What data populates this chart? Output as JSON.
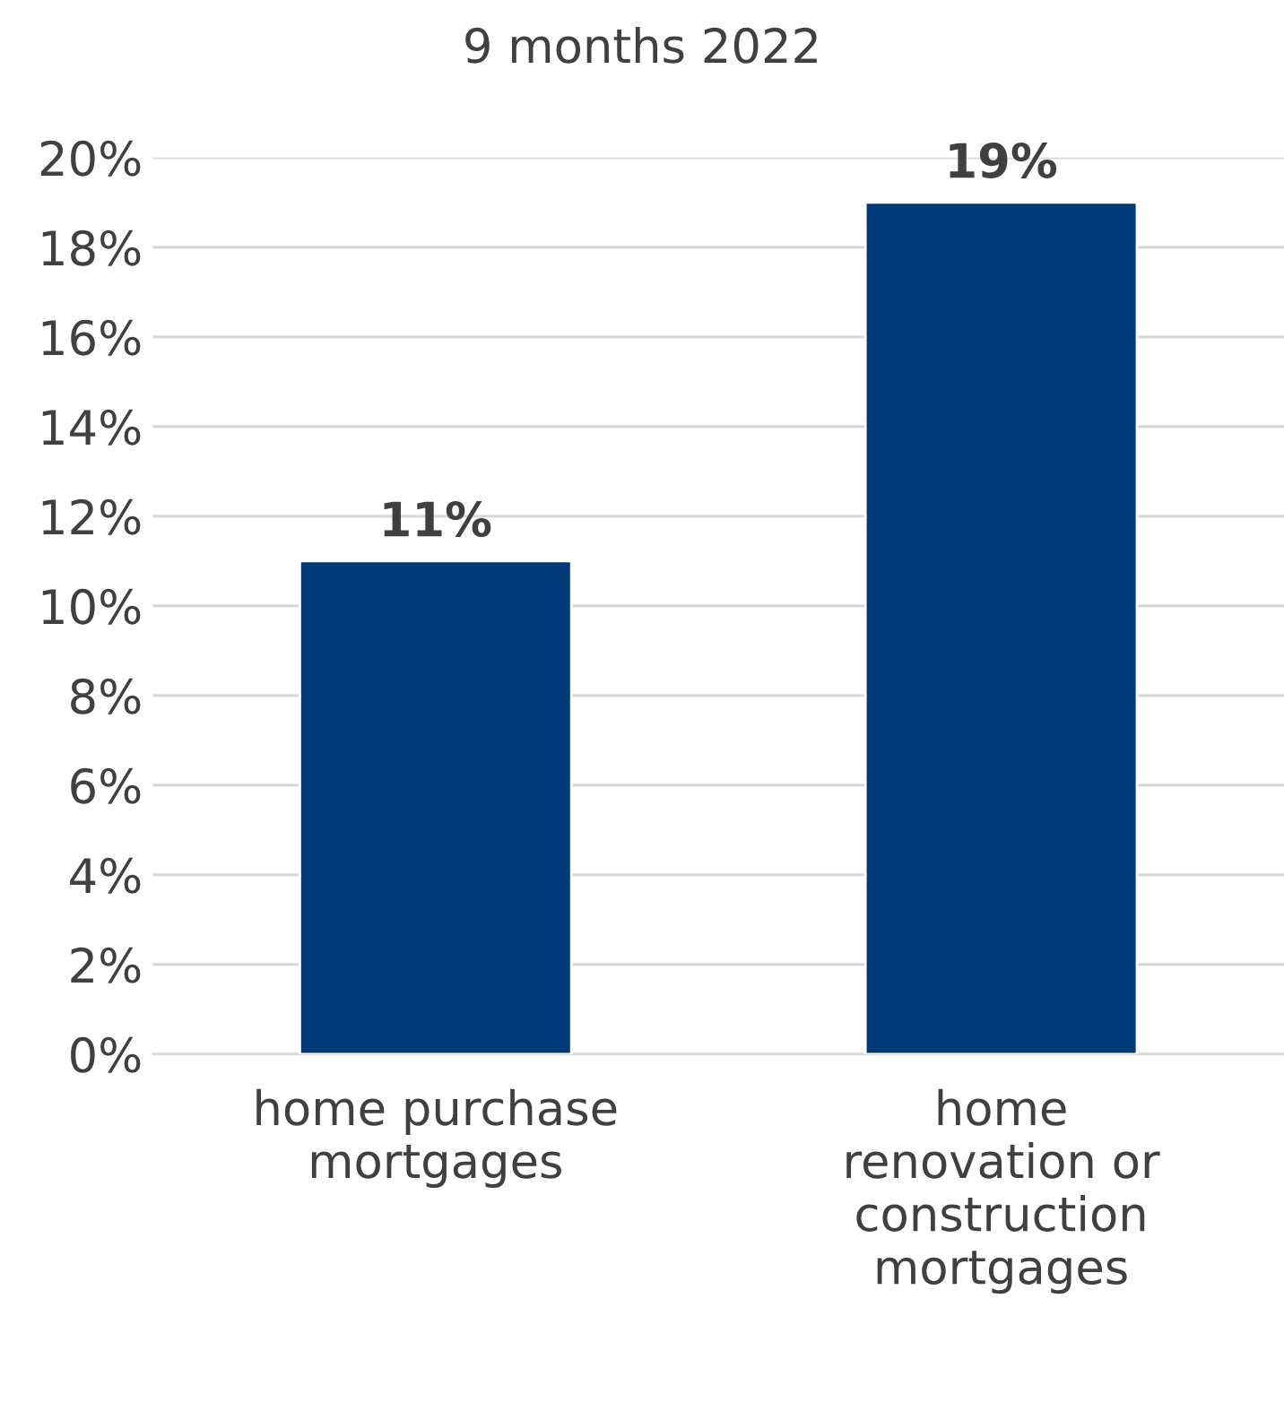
{
  "chart_data": {
    "type": "bar",
    "title": "9 months 2022",
    "categories": [
      "home purchase\nmortgages",
      "home\nrenovation or\nconstruction\nmortgages"
    ],
    "values": [
      11,
      19
    ],
    "color": "#003a78",
    "value_labels": [
      "11%",
      "19%"
    ],
    "ylim": [
      0,
      20
    ],
    "yticks": [
      {
        "value": 0,
        "label": "0%"
      },
      {
        "value": 2,
        "label": "2%"
      },
      {
        "value": 4,
        "label": "4%"
      },
      {
        "value": 6,
        "label": "6%"
      },
      {
        "value": 8,
        "label": "8%"
      },
      {
        "value": 10,
        "label": "10%"
      },
      {
        "value": 12,
        "label": "12%"
      },
      {
        "value": 14,
        "label": "14%"
      },
      {
        "value": 16,
        "label": "16%"
      },
      {
        "value": 18,
        "label": "18%"
      },
      {
        "value": 20,
        "label": "20%"
      }
    ],
    "grid": "y",
    "legend": false
  }
}
